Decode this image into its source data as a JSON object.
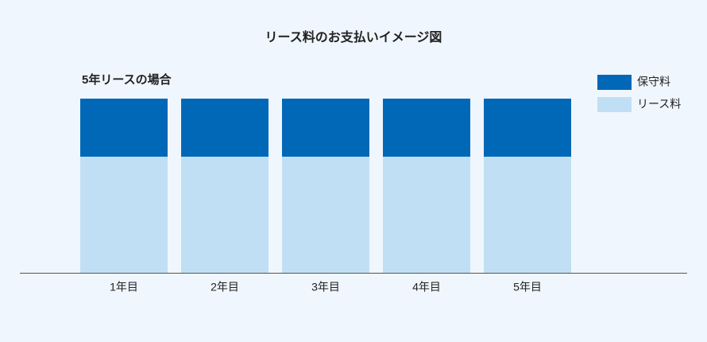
{
  "chart_data": {
    "type": "bar",
    "stacked": true,
    "title": "リース料のお支払いイメージ図",
    "subtitle": "5年リースの場合",
    "categories": [
      "1年目",
      "2年目",
      "3年目",
      "4年目",
      "5年目"
    ],
    "series": [
      {
        "name": "リース料",
        "color": "#c1dff4",
        "values": [
          100,
          100,
          100,
          100,
          100
        ]
      },
      {
        "name": "保守料",
        "color": "#0068b6",
        "values": [
          50,
          50,
          50,
          50,
          50
        ]
      }
    ],
    "ylim": [
      0,
      150
    ],
    "legend": "top-right"
  }
}
